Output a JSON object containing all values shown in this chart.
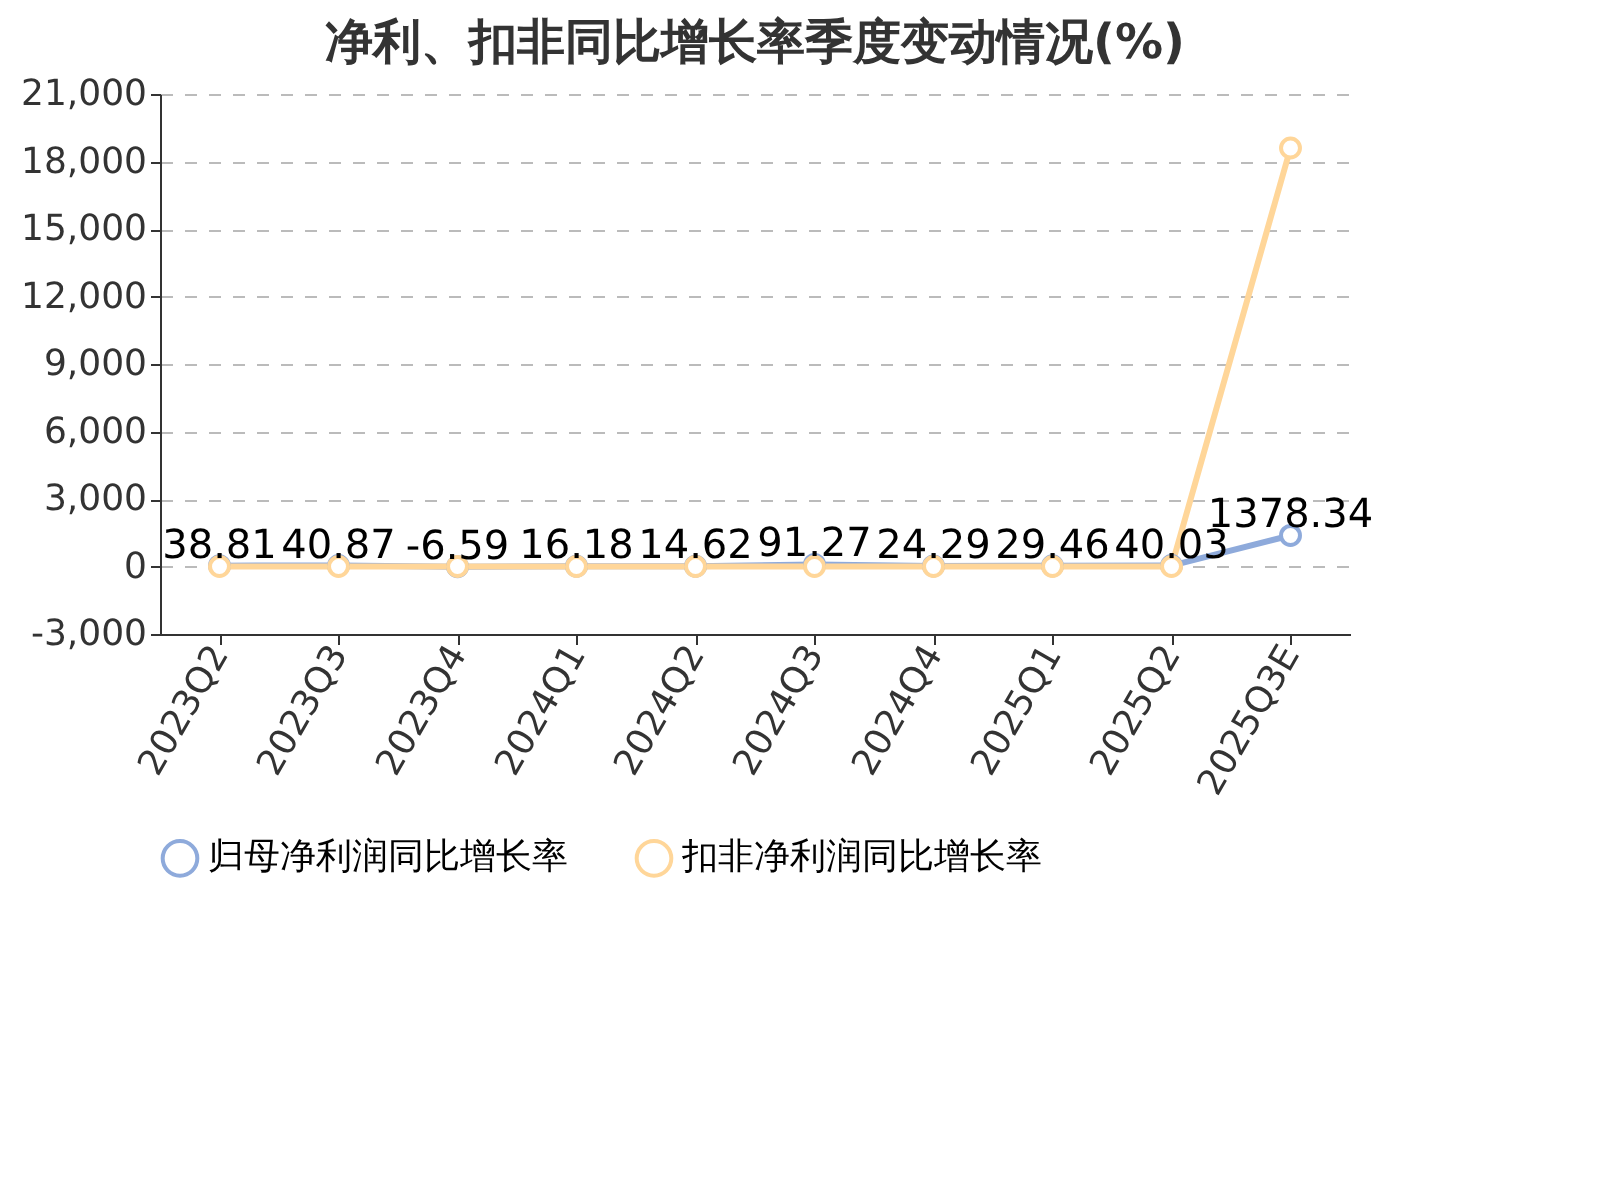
{
  "chart_data": {
    "type": "line",
    "title": "净利、扣非同比增长率季度变动情况(%)",
    "categories": [
      "2023Q2",
      "2023Q3",
      "2023Q4",
      "2024Q1",
      "2024Q2",
      "2024Q3",
      "2024Q4",
      "2025Q1",
      "2025Q2",
      "2025Q3E"
    ],
    "series": [
      {
        "name": "归母净利润同比增长率",
        "color": "#8eaadb",
        "values": [
          38.81,
          40.87,
          -6.59,
          16.18,
          14.62,
          91.27,
          24.29,
          29.46,
          40.03,
          1378.34
        ],
        "data_labels": true
      },
      {
        "name": "扣非净利润同比增长率",
        "color": "#ffd699",
        "values": [
          0,
          0,
          0,
          0,
          0,
          0,
          0,
          0,
          0,
          18600
        ]
      }
    ],
    "ylim": [
      -3000,
      21000
    ],
    "yticks": [
      {
        "value": -3000,
        "label": "-3,000"
      },
      0,
      {
        "value": 3000,
        "label": "3,000"
      },
      {
        "value": 6000,
        "label": "6,000"
      },
      {
        "value": 9000,
        "label": "9,000"
      },
      {
        "value": 12000,
        "label": "12,000"
      },
      {
        "value": 15000,
        "label": "15,000"
      },
      {
        "value": 18000,
        "label": "18,000"
      },
      {
        "value": 21000,
        "label": "21,000"
      }
    ],
    "grid": "y",
    "legend": "bottom",
    "marker": "circle",
    "line_style": "solid"
  }
}
